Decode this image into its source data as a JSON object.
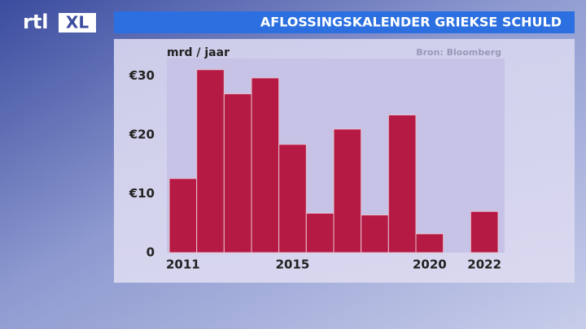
{
  "logo": {
    "left": "rtl",
    "right": "XL"
  },
  "chart_data": {
    "type": "bar",
    "title": "AFLOSSINGSKALENDER GRIEKSE SCHULD",
    "ylabel": "mrd / jaar",
    "source": "Bron: Bloomberg",
    "categories": [
      "2011",
      null,
      null,
      null,
      "2015",
      null,
      null,
      null,
      null,
      "2020",
      null,
      "2022"
    ],
    "values": [
      12.6,
      31.1,
      27,
      29.7,
      18.4,
      6.7,
      21,
      6.4,
      23.4,
      3.2,
      0,
      7
    ],
    "color": "#b51a45",
    "ylim": [
      0,
      33
    ],
    "yticks": [
      0,
      {
        "value": 10,
        "label": "€10"
      },
      {
        "value": 20,
        "label": "€20"
      },
      {
        "value": 30,
        "label": "€30"
      }
    ]
  }
}
